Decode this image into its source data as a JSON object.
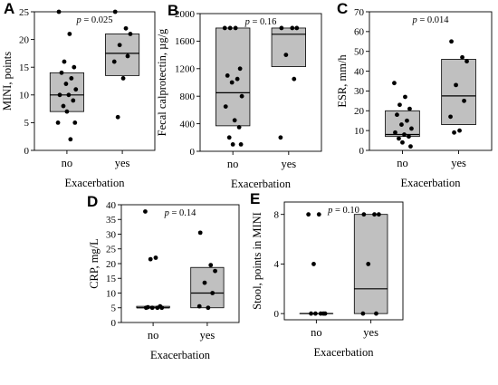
{
  "chart_data": [
    {
      "panel": "A",
      "type": "box-scatter",
      "ylabel": "MINI, points",
      "xlabel": "Exacerbation",
      "p_label": "p",
      "p_value": "= 0.025",
      "ylim": [
        0,
        25
      ],
      "yticks": [
        0,
        5,
        10,
        15,
        20,
        25
      ],
      "categories": [
        "no",
        "yes"
      ],
      "boxes": [
        {
          "category": "no",
          "q1": 7,
          "median": 10,
          "q3": 14
        },
        {
          "category": "yes",
          "q1": 13.5,
          "median": 17.5,
          "q3": 21
        }
      ],
      "points": [
        {
          "category": "no",
          "values": [
            25,
            21,
            16,
            15,
            14,
            13,
            12,
            11,
            10,
            10,
            9,
            8,
            7,
            5,
            5,
            2
          ]
        },
        {
          "category": "yes",
          "values": [
            25,
            22,
            21,
            19,
            17,
            16,
            13,
            6
          ]
        }
      ]
    },
    {
      "panel": "B",
      "type": "box-scatter",
      "ylabel": "Fecal calprotectin, µg/g",
      "xlabel": "Exacerbation",
      "p_label": "p",
      "p_value": "= 0.16",
      "ylim": [
        0,
        2000
      ],
      "yticks": [
        0,
        400,
        800,
        1200,
        1600,
        2000
      ],
      "categories": [
        "no",
        "yes"
      ],
      "boxes": [
        {
          "category": "no",
          "q1": 370,
          "median": 850,
          "q3": 1790
        },
        {
          "category": "yes",
          "q1": 1230,
          "median": 1700,
          "q3": 1790
        }
      ],
      "points": [
        {
          "category": "no",
          "values": [
            1790,
            1790,
            1790,
            1200,
            1100,
            1050,
            1000,
            800,
            650,
            450,
            350,
            200,
            100,
            100
          ]
        },
        {
          "category": "yes",
          "values": [
            1790,
            1790,
            1790,
            1400,
            1050,
            200
          ]
        }
      ]
    },
    {
      "panel": "C",
      "type": "box-scatter",
      "ylabel": "ESR, mm/h",
      "xlabel": "Exacerbation",
      "p_label": "p",
      "p_value": "= 0.014",
      "ylim": [
        0,
        70
      ],
      "yticks": [
        0,
        10,
        20,
        30,
        40,
        50,
        60,
        70
      ],
      "categories": [
        "no",
        "yes"
      ],
      "boxes": [
        {
          "category": "no",
          "q1": 7,
          "median": 8,
          "q3": 20
        },
        {
          "category": "yes",
          "q1": 13,
          "median": 27.5,
          "q3": 46
        }
      ],
      "points": [
        {
          "category": "no",
          "values": [
            34,
            27,
            23,
            21,
            18,
            15,
            13,
            11,
            9,
            8,
            7,
            6,
            4,
            2
          ]
        },
        {
          "category": "yes",
          "values": [
            55,
            47,
            45,
            33,
            25,
            17,
            10,
            9
          ]
        }
      ]
    },
    {
      "panel": "D",
      "type": "box-scatter",
      "ylabel": "CRP, mg/L",
      "xlabel": "Exacerbation",
      "p_label": "p",
      "p_value": "= 0.14",
      "ylim": [
        0,
        40
      ],
      "yticks": [
        0,
        5,
        10,
        15,
        20,
        25,
        30,
        35,
        40
      ],
      "categories": [
        "no",
        "yes"
      ],
      "boxes": [
        {
          "category": "no",
          "q1": 5,
          "median": 5,
          "q3": 5.5
        },
        {
          "category": "yes",
          "q1": 5,
          "median": 10,
          "q3": 18.7
        }
      ],
      "points": [
        {
          "category": "no",
          "values": [
            37.7,
            22,
            21.5,
            5.5,
            5.2,
            5,
            5,
            5,
            5
          ]
        },
        {
          "category": "yes",
          "values": [
            30.5,
            19.5,
            17.5,
            13.5,
            10,
            5.5,
            5
          ]
        }
      ]
    },
    {
      "panel": "E",
      "type": "box-scatter",
      "ylabel": "Stool, points in MINI",
      "xlabel": "Exacerbation",
      "p_label": "p",
      "p_value": "= 0.10",
      "ylim": [
        -0.5,
        9
      ],
      "yticks": [
        0,
        4,
        8
      ],
      "categories": [
        "no",
        "yes"
      ],
      "boxes": [
        {
          "category": "no",
          "q1": 0,
          "median": 0,
          "q3": 0
        },
        {
          "category": "yes",
          "q1": 0,
          "median": 2,
          "q3": 8
        }
      ],
      "points": [
        {
          "category": "no",
          "values": [
            8,
            8,
            4,
            0,
            0,
            0,
            0,
            0
          ]
        },
        {
          "category": "yes",
          "values": [
            8,
            8,
            8,
            4,
            0,
            0
          ]
        }
      ]
    }
  ]
}
